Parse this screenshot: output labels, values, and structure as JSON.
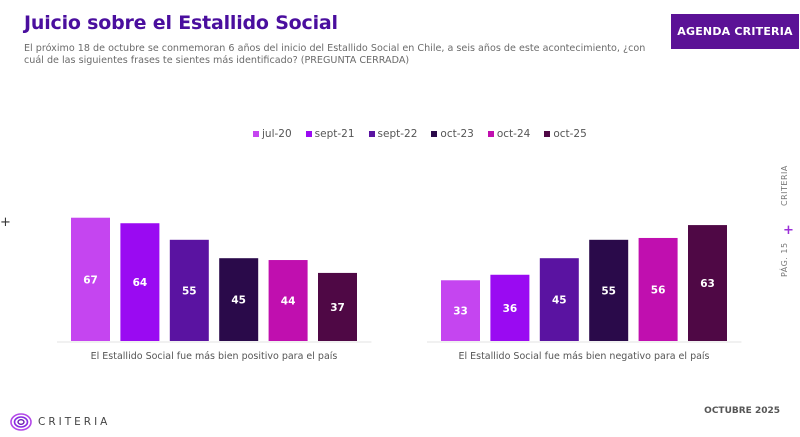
{
  "header": {
    "title": "Juicio sobre el Estallido Social",
    "subtitle": "El próximo 18 de octubre se conmemoran 6 años del inicio del Estallido Social en Chile, a seis años de este acontecimiento, ¿con cuál de las siguientes frases te sientes más identificado? (PREGUNTA CERRADA)",
    "badge": "AGENDA CRITERIA"
  },
  "side": {
    "brand": "CRITERIA",
    "page": "PÁG. 15",
    "plus": "+"
  },
  "left_marker": "+",
  "footer": {
    "logo_text": "CRITERIA",
    "date": "OCTUBRE 2025"
  },
  "colors": {
    "title": "#4a0e9e",
    "badge_bg": "#5b1296",
    "series": [
      "#c545f0",
      "#9a0af2",
      "#5a13a1",
      "#2a0a4a",
      "#c00faf",
      "#4f0845"
    ]
  },
  "chart_data": {
    "type": "bar",
    "title": "Juicio sobre el Estallido Social",
    "xlabel": "",
    "ylabel": "",
    "ylim": [
      0,
      70
    ],
    "grid": false,
    "legend_position": "top-center",
    "categories": [
      "El Estallido Social fue más bien positivo para el país",
      "El Estallido Social fue más bien negativo para el país"
    ],
    "series": [
      {
        "name": "jul-20",
        "values": [
          67,
          33
        ]
      },
      {
        "name": "sept-21",
        "values": [
          64,
          36
        ]
      },
      {
        "name": "sept-22",
        "values": [
          55,
          45
        ]
      },
      {
        "name": "oct-23",
        "values": [
          45,
          55
        ]
      },
      {
        "name": "oct-24",
        "values": [
          44,
          56
        ]
      },
      {
        "name": "oct-25",
        "values": [
          37,
          63
        ]
      }
    ]
  }
}
